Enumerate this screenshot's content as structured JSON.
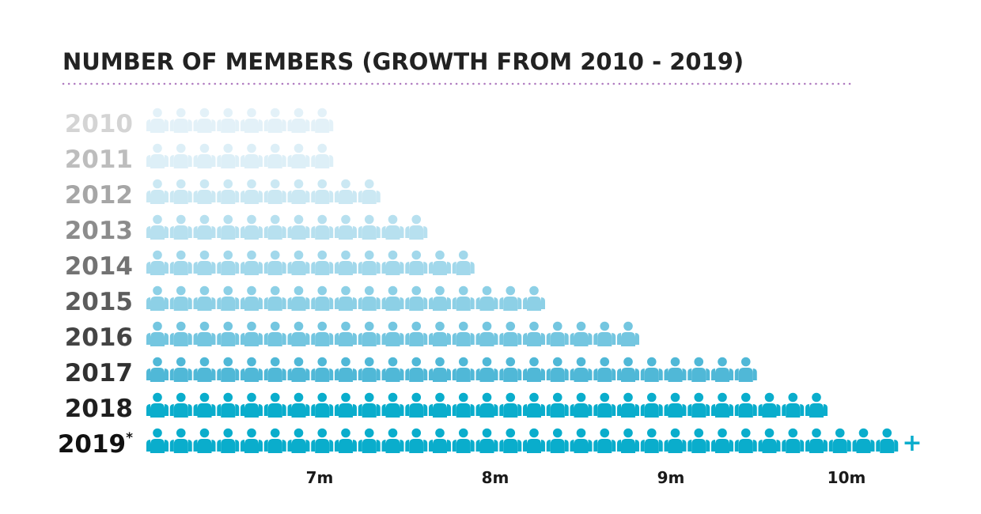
{
  "chart_data": {
    "type": "pictogram",
    "title": "NUMBER OF MEMBERS (GROWTH FROM 2010 - 2019)",
    "categories": [
      "2010",
      "2011",
      "2012",
      "2013",
      "2014",
      "2015",
      "2016",
      "2017",
      "2018",
      "2019*"
    ],
    "icon_counts": [
      8,
      8,
      10,
      12,
      14,
      17,
      21,
      26,
      29,
      32
    ],
    "overflow_marker": "+",
    "x_ticks": [
      {
        "label": "7m",
        "value": 7
      },
      {
        "label": "8m",
        "value": 8
      },
      {
        "label": "9m",
        "value": 9
      },
      {
        "label": "10m",
        "value": 10
      }
    ],
    "icon_colors": [
      "#e3f1f8",
      "#ddeff7",
      "#cbe8f3",
      "#b7e0ef",
      "#a2d8eb",
      "#8dd0e6",
      "#74c6e0",
      "#50b8d7",
      "#0aadcc",
      "#0aadcc"
    ],
    "label_colors": [
      "#d4d4d4",
      "#bdbdbd",
      "#a6a6a6",
      "#8c8c8c",
      "#737373",
      "#5c5c5c",
      "#444444",
      "#303030",
      "#1f1f1f",
      "#111111"
    ],
    "marker_color": "#0aadcc",
    "divider_color": "#b07cc0"
  }
}
